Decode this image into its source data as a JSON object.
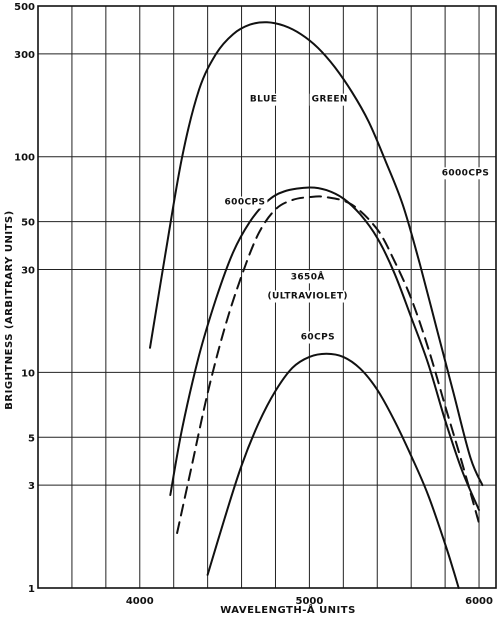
{
  "chart_data": {
    "type": "line",
    "xlabel": "WAVELENGTH-Å UNITS",
    "ylabel": "BRIGHTNESS (ARBITRARY UNITS)",
    "xlim": [
      3400,
      6100
    ],
    "ylim": [
      1,
      500
    ],
    "y_scale": "log",
    "grid": true,
    "x_ticks": [
      {
        "value": 4000,
        "label": "4000"
      },
      {
        "value": 5000,
        "label": "5000"
      },
      {
        "value": 6000,
        "label": "6000"
      }
    ],
    "y_ticks": [
      {
        "value": 1,
        "label": "1"
      },
      {
        "value": 3,
        "label": "3"
      },
      {
        "value": 5,
        "label": "5"
      },
      {
        "value": 10,
        "label": "10"
      },
      {
        "value": 30,
        "label": "30"
      },
      {
        "value": 50,
        "label": "50"
      },
      {
        "value": 100,
        "label": "100"
      },
      {
        "value": 300,
        "label": "300"
      },
      {
        "value": 500,
        "label": "500"
      }
    ],
    "series": [
      {
        "name": "6000CPS",
        "style": "solid",
        "points": [
          [
            4060,
            13
          ],
          [
            4150,
            35
          ],
          [
            4250,
            100
          ],
          [
            4350,
            205
          ],
          [
            4450,
            300
          ],
          [
            4550,
            370
          ],
          [
            4650,
            410
          ],
          [
            4750,
            420
          ],
          [
            4850,
            405
          ],
          [
            4950,
            370
          ],
          [
            5050,
            320
          ],
          [
            5150,
            260
          ],
          [
            5250,
            200
          ],
          [
            5350,
            145
          ],
          [
            5450,
            95
          ],
          [
            5550,
            60
          ],
          [
            5650,
            32
          ],
          [
            5750,
            16
          ],
          [
            5850,
            8
          ],
          [
            5950,
            4
          ],
          [
            6020,
            3
          ]
        ]
      },
      {
        "name": "600CPS",
        "style": "solid",
        "points": [
          [
            4180,
            2.7
          ],
          [
            4250,
            5.5
          ],
          [
            4350,
            12
          ],
          [
            4450,
            22
          ],
          [
            4550,
            36
          ],
          [
            4650,
            50
          ],
          [
            4750,
            62
          ],
          [
            4850,
            69
          ],
          [
            5000,
            72
          ],
          [
            5100,
            70
          ],
          [
            5200,
            64
          ],
          [
            5300,
            54
          ],
          [
            5400,
            42
          ],
          [
            5500,
            29
          ],
          [
            5600,
            18
          ],
          [
            5700,
            11
          ],
          [
            5800,
            6
          ],
          [
            5900,
            3.5
          ],
          [
            6000,
            2.3
          ]
        ]
      },
      {
        "name": "3650Å (ULTRAVIOLET)",
        "style": "dashed",
        "points": [
          [
            4220,
            1.8
          ],
          [
            4300,
            3.5
          ],
          [
            4400,
            8
          ],
          [
            4500,
            16
          ],
          [
            4600,
            28
          ],
          [
            4700,
            44
          ],
          [
            4800,
            57
          ],
          [
            4900,
            63
          ],
          [
            5000,
            65
          ],
          [
            5100,
            65
          ],
          [
            5250,
            60
          ],
          [
            5400,
            46
          ],
          [
            5500,
            33
          ],
          [
            5600,
            22
          ],
          [
            5700,
            13
          ],
          [
            5800,
            7
          ],
          [
            5900,
            3.8
          ],
          [
            6000,
            2.0
          ]
        ]
      },
      {
        "name": "60CPS",
        "style": "solid",
        "points": [
          [
            4400,
            1.15
          ],
          [
            4500,
            2.1
          ],
          [
            4600,
            3.7
          ],
          [
            4700,
            5.8
          ],
          [
            4800,
            8.2
          ],
          [
            4900,
            10.5
          ],
          [
            5000,
            11.8
          ],
          [
            5100,
            12.2
          ],
          [
            5200,
            11.8
          ],
          [
            5300,
            10.4
          ],
          [
            5400,
            8.3
          ],
          [
            5500,
            6.0
          ],
          [
            5600,
            4.1
          ],
          [
            5700,
            2.7
          ],
          [
            5800,
            1.6
          ],
          [
            5850,
            1.2
          ],
          [
            5880,
            1.0
          ]
        ]
      }
    ],
    "annotations": [
      {
        "text": "BLUE",
        "x": 4730,
        "y": 180
      },
      {
        "text": "GREEN",
        "x": 5120,
        "y": 180
      },
      {
        "text": "6000CPS",
        "x": 5920,
        "y": 82
      },
      {
        "text": "600CPS",
        "x": 4620,
        "y": 60
      },
      {
        "text": "3650Å",
        "x": 4990,
        "y": 27
      },
      {
        "text": "(ULTRAVIOLET)",
        "x": 4990,
        "y": 22
      },
      {
        "text": "60CPS",
        "x": 5050,
        "y": 14.2
      }
    ]
  }
}
